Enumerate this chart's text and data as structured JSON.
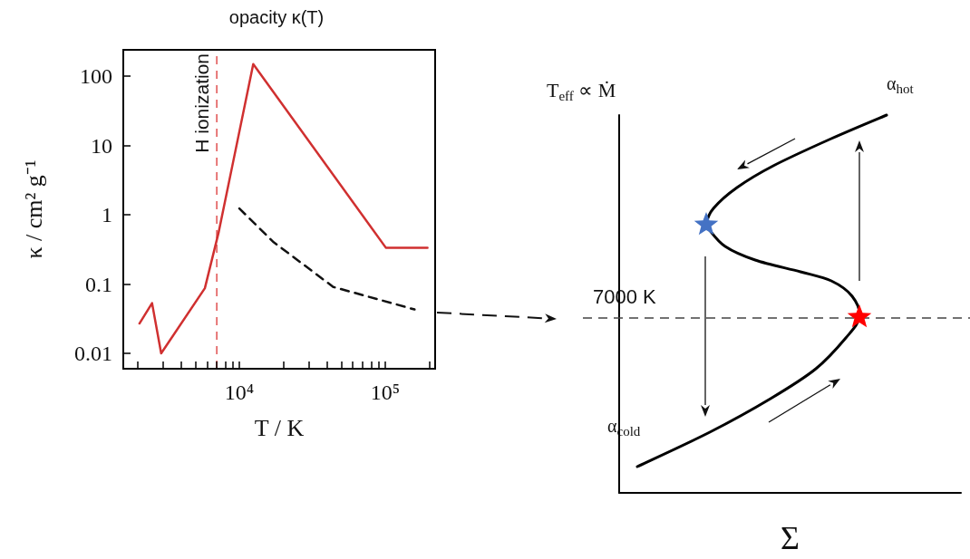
{
  "chart_data": [
    {
      "type": "line",
      "title": "opacity κ(T)",
      "xlabel": "T / K",
      "ylabel": "κ / cm² g⁻¹",
      "log": "xy",
      "marker": "none",
      "xlim": [
        1600,
        220000
      ],
      "ylim": [
        0.006,
        240
      ],
      "xticks": [
        {
          "value": 2000,
          "label": null
        },
        {
          "value": 3000,
          "label": null
        },
        {
          "value": 4000,
          "label": null
        },
        {
          "value": 5000,
          "label": null
        },
        {
          "value": 6000,
          "label": null
        },
        {
          "value": 7000,
          "label": null
        },
        {
          "value": 8000,
          "label": null
        },
        {
          "value": 9000,
          "label": null
        },
        {
          "value": 10000,
          "label": "10⁴"
        },
        {
          "value": 20000,
          "label": null
        },
        {
          "value": 30000,
          "label": null
        },
        {
          "value": 40000,
          "label": null
        },
        {
          "value": 50000,
          "label": null
        },
        {
          "value": 60000,
          "label": null
        },
        {
          "value": 70000,
          "label": null
        },
        {
          "value": 80000,
          "label": null
        },
        {
          "value": 90000,
          "label": null
        },
        {
          "value": 100000,
          "label": "10⁵"
        },
        {
          "value": 200000,
          "label": null
        }
      ],
      "yticks": [
        0.01,
        0.1,
        1,
        10,
        100
      ],
      "series": [
        {
          "color": "#d03030",
          "line_style": "solid",
          "x": [
            2065,
            2520,
            2910,
            5800,
            7200,
            12450,
            101000,
            195000
          ],
          "values": [
            0.027,
            0.053,
            0.01,
            0.087,
            0.55,
            149,
            0.335,
            0.335
          ]
        },
        {
          "color": "#111111",
          "line_style": "dashed",
          "x": [
            10000,
            17000,
            44000,
            159000
          ],
          "values": [
            1.23,
            0.41,
            0.091,
            0.043
          ]
        }
      ],
      "ref_lines": [
        {
          "axis": "x",
          "value": 7000,
          "label": "H ionization",
          "color": "#e05050",
          "line_style": "dashed"
        }
      ]
    },
    {
      "type": "other",
      "xlabel": "Σ",
      "ylabel": "T$_{eff}$ ∝ Ṁ",
      "annotations": [
        "α$_{hot}$",
        "α$_{cold}$",
        "7000 K"
      ]
    }
  ]
}
